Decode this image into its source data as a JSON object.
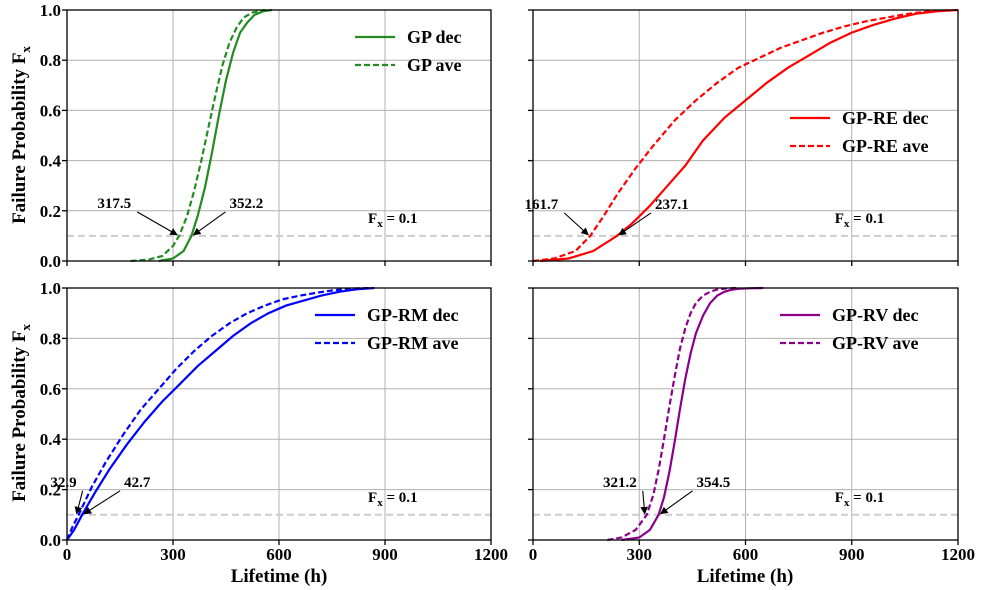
{
  "figure": {
    "ylabel_main": "Failure Probability F",
    "ylabel_sub": "x",
    "xlabel": "Lifetime (h)",
    "fx_main": "F",
    "fx_sub": "x",
    "fx_rest": " = 0.1"
  },
  "chart_data": [
    {
      "type": "line",
      "xlim": [
        0,
        1200
      ],
      "ylim": [
        0,
        1.0
      ],
      "xticks": [
        "0",
        "300",
        "600",
        "900",
        "1200"
      ],
      "yticks": [
        "0.0",
        "0.2",
        "0.4",
        "0.6",
        "0.8",
        "1.0"
      ],
      "grid": true,
      "legend_position": "top-right",
      "threshold": 0.1,
      "series": [
        {
          "name": "GP dec",
          "color": "#228b22",
          "style": "solid",
          "x": [
            260,
            300,
            330,
            352.2,
            370,
            390,
            410,
            430,
            450,
            470,
            490,
            510,
            530,
            555,
            580
          ],
          "y": [
            0.0,
            0.01,
            0.04,
            0.1,
            0.18,
            0.29,
            0.43,
            0.58,
            0.72,
            0.83,
            0.91,
            0.95,
            0.98,
            0.995,
            1.0
          ]
        },
        {
          "name": "GP ave",
          "color": "#228b22",
          "style": "dashed",
          "x": [
            180,
            230,
            270,
            300,
            317.5,
            340,
            360,
            380,
            400,
            420,
            440,
            460,
            480,
            500,
            525,
            560
          ],
          "y": [
            0.0,
            0.005,
            0.02,
            0.06,
            0.1,
            0.18,
            0.28,
            0.4,
            0.53,
            0.66,
            0.78,
            0.87,
            0.93,
            0.97,
            0.99,
            1.0
          ]
        }
      ],
      "annotations": [
        {
          "text": "317.5",
          "x": 317.5,
          "y": 0.1
        },
        {
          "text": "352.2",
          "x": 352.2,
          "y": 0.1
        }
      ]
    },
    {
      "type": "line",
      "xlim": [
        0,
        1200
      ],
      "ylim": [
        0,
        1.0
      ],
      "xticks": [
        "0",
        "300",
        "600",
        "900",
        "1200"
      ],
      "yticks": [
        "0.0",
        "0.2",
        "0.4",
        "0.6",
        "0.8",
        "1.0"
      ],
      "grid": true,
      "legend_position": "center-right",
      "threshold": 0.1,
      "series": [
        {
          "name": "GP-RE dec",
          "color": "#ff0000",
          "style": "solid",
          "x": [
            20,
            100,
            170,
            237.1,
            280,
            330,
            380,
            430,
            480,
            540,
            600,
            660,
            720,
            780,
            840,
            900,
            960,
            1020,
            1080,
            1140,
            1200
          ],
          "y": [
            0.0,
            0.01,
            0.04,
            0.1,
            0.15,
            0.22,
            0.3,
            0.38,
            0.48,
            0.57,
            0.64,
            0.71,
            0.77,
            0.82,
            0.87,
            0.91,
            0.94,
            0.965,
            0.985,
            0.995,
            1.0
          ]
        },
        {
          "name": "GP-RE ave",
          "color": "#ff0000",
          "style": "dashed",
          "x": [
            0,
            60,
            120,
            161.7,
            200,
            240,
            290,
            340,
            400,
            460,
            520,
            580,
            640,
            700,
            760,
            820,
            880,
            940,
            1000,
            1060,
            1120,
            1180
          ],
          "y": [
            0.0,
            0.01,
            0.04,
            0.1,
            0.18,
            0.27,
            0.37,
            0.46,
            0.56,
            0.64,
            0.71,
            0.77,
            0.81,
            0.85,
            0.88,
            0.91,
            0.935,
            0.955,
            0.97,
            0.985,
            0.995,
            1.0
          ]
        }
      ],
      "annotations": [
        {
          "text": "161.7",
          "x": 161.7,
          "y": 0.1
        },
        {
          "text": "237.1",
          "x": 237.1,
          "y": 0.1
        }
      ]
    },
    {
      "type": "line",
      "xlim": [
        0,
        1200
      ],
      "ylim": [
        0,
        1.0
      ],
      "xticks": [
        "0",
        "300",
        "600",
        "900",
        "1200"
      ],
      "yticks": [
        "0.0",
        "0.2",
        "0.4",
        "0.6",
        "0.8",
        "1.0"
      ],
      "grid": true,
      "legend_position": "top-right",
      "threshold": 0.1,
      "series": [
        {
          "name": "GP-RM dec",
          "color": "#0000ff",
          "style": "solid",
          "x": [
            0,
            20,
            42.7,
            80,
            120,
            170,
            220,
            270,
            320,
            370,
            420,
            470,
            520,
            570,
            620,
            670,
            720,
            770,
            820,
            870
          ],
          "y": [
            0.0,
            0.04,
            0.1,
            0.19,
            0.28,
            0.38,
            0.47,
            0.55,
            0.62,
            0.69,
            0.75,
            0.81,
            0.86,
            0.9,
            0.93,
            0.95,
            0.97,
            0.985,
            0.995,
            1.0
          ]
        },
        {
          "name": "GP-RM ave",
          "color": "#0000ff",
          "style": "dashed",
          "x": [
            0,
            15,
            32.9,
            70,
            110,
            160,
            210,
            260,
            310,
            360,
            410,
            460,
            510,
            560,
            610,
            660,
            710,
            760,
            810,
            860
          ],
          "y": [
            0.0,
            0.05,
            0.1,
            0.21,
            0.31,
            0.42,
            0.52,
            0.6,
            0.68,
            0.75,
            0.81,
            0.86,
            0.9,
            0.93,
            0.955,
            0.97,
            0.982,
            0.992,
            0.998,
            1.0
          ]
        }
      ],
      "annotations": [
        {
          "text": "32.9",
          "x": 32.9,
          "y": 0.1
        },
        {
          "text": "42.7",
          "x": 42.7,
          "y": 0.1
        }
      ]
    },
    {
      "type": "line",
      "xlim": [
        0,
        1200
      ],
      "ylim": [
        0,
        1.0
      ],
      "xticks": [
        "0",
        "300",
        "600",
        "900",
        "1200"
      ],
      "yticks": [
        "0.0",
        "0.2",
        "0.4",
        "0.6",
        "0.8",
        "1.0"
      ],
      "grid": true,
      "legend_position": "top-right",
      "threshold": 0.1,
      "series": [
        {
          "name": "GP-RV dec",
          "color": "#8b008b",
          "style": "solid",
          "x": [
            250,
            300,
            330,
            354.5,
            370,
            385,
            400,
            415,
            430,
            445,
            460,
            480,
            500,
            520,
            540,
            560,
            580,
            610,
            650
          ],
          "y": [
            0.0,
            0.01,
            0.04,
            0.1,
            0.17,
            0.27,
            0.39,
            0.52,
            0.64,
            0.74,
            0.82,
            0.89,
            0.94,
            0.97,
            0.985,
            0.993,
            0.997,
            0.999,
            1.0
          ]
        },
        {
          "name": "GP-RV ave",
          "color": "#8b008b",
          "style": "dashed",
          "x": [
            210,
            250,
            290,
            321.2,
            340,
            355,
            370,
            385,
            400,
            415,
            430,
            445,
            460,
            480,
            500,
            520,
            545,
            575
          ],
          "y": [
            0.0,
            0.01,
            0.04,
            0.1,
            0.18,
            0.28,
            0.4,
            0.53,
            0.65,
            0.76,
            0.84,
            0.9,
            0.94,
            0.97,
            0.985,
            0.994,
            0.998,
            1.0
          ]
        }
      ],
      "annotations": [
        {
          "text": "321.2",
          "x": 321.2,
          "y": 0.1
        },
        {
          "text": "354.5",
          "x": 354.5,
          "y": 0.1
        }
      ]
    }
  ]
}
